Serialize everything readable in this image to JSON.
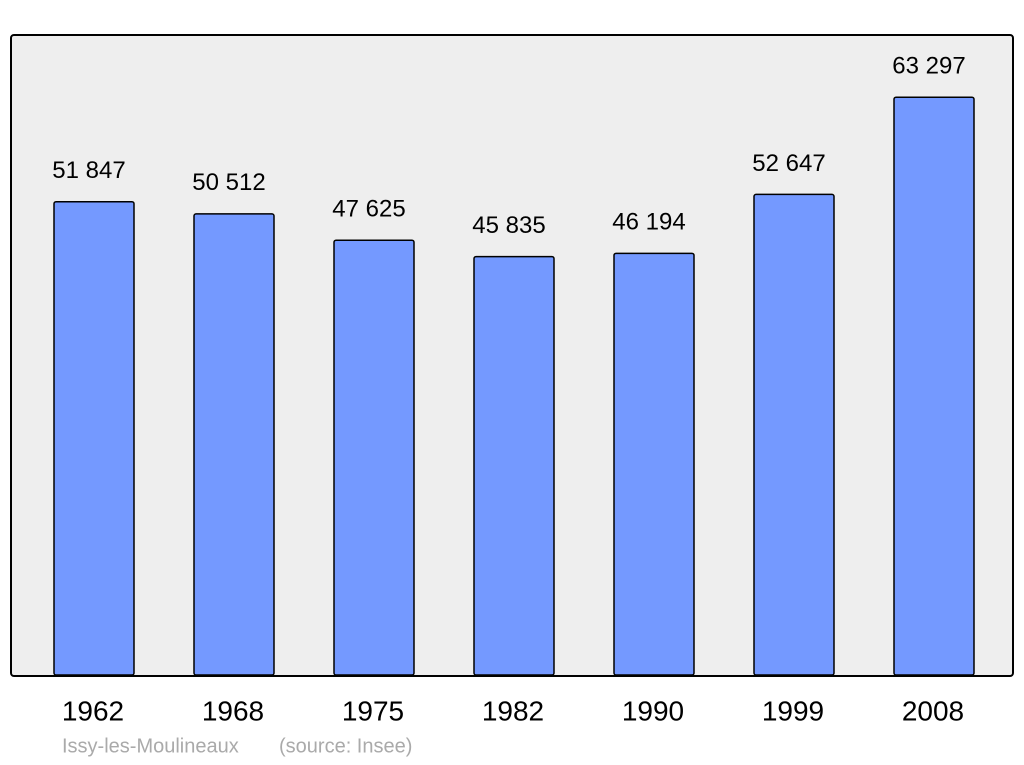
{
  "chart_data": {
    "type": "bar",
    "categories": [
      "1962",
      "1968",
      "1975",
      "1982",
      "1990",
      "1999",
      "2008"
    ],
    "values": [
      51847,
      50512,
      47625,
      45835,
      46194,
      52647,
      63297
    ],
    "value_labels": [
      "51 847",
      "50 512",
      "47 625",
      "45 835",
      "46 194",
      "52 647",
      "63 297"
    ],
    "color": "#7499ff",
    "ylim": [
      0,
      70000
    ],
    "footer": [
      "Issy-les-Moulineaux",
      "(source: Insee)"
    ]
  }
}
